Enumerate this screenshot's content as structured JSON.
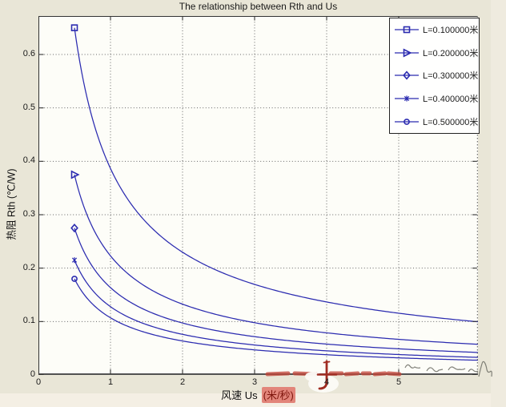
{
  "page": {
    "fig_bg": "#e9e6d7",
    "plot_bg": "#fdfdf8",
    "edge_bg": "#f4efe4"
  },
  "chart_data": {
    "type": "line",
    "title": "The relationship between Rth and Us",
    "xlabel": "风速 Us (米/秒)",
    "xlabel_main": "风速  Us",
    "xlabel_unit": "(米/秒)",
    "ylabel": "热阻  Rth (℃/W)",
    "xlim": [
      0,
      6.1
    ],
    "ylim": [
      0,
      0.672
    ],
    "xticks": [
      "0",
      "1",
      "2",
      "3",
      "4",
      "5"
    ],
    "xtick_values": [
      0,
      1,
      2,
      3,
      4,
      5
    ],
    "yticks": [
      "0",
      "0.1",
      "0.2",
      "0.3",
      "0.4",
      "0.5",
      "0.6"
    ],
    "ytick_values": [
      0,
      0.1,
      0.2,
      0.3,
      0.4,
      0.5,
      0.6
    ],
    "grid": true,
    "legend_position": "top-right",
    "model": "Rth(Us) = Rth(0.5) * (Us/0.5)^-0.75",
    "x_start": 0.5,
    "x_end": 6.1,
    "power": -0.75,
    "sample_x": [
      0.5,
      1,
      2,
      3,
      4,
      5,
      6
    ],
    "series": [
      {
        "name": "L=0.100000米",
        "L_m": 0.1,
        "marker": "square",
        "start_rth": 0.65,
        "sample_rth": [
          0.65,
          0.386,
          0.23,
          0.17,
          0.137,
          0.116,
          0.101
        ]
      },
      {
        "name": "L=0.200000米",
        "L_m": 0.2,
        "marker": "triangle-right",
        "start_rth": 0.375,
        "sample_rth": [
          0.375,
          0.223,
          0.133,
          0.098,
          0.079,
          0.067,
          0.058
        ]
      },
      {
        "name": "L=0.300000米",
        "L_m": 0.3,
        "marker": "diamond",
        "start_rth": 0.275,
        "sample_rth": [
          0.275,
          0.164,
          0.097,
          0.072,
          0.058,
          0.049,
          0.043
        ]
      },
      {
        "name": "L=0.400000米",
        "L_m": 0.4,
        "marker": "asterisk",
        "start_rth": 0.215,
        "sample_rth": [
          0.215,
          0.128,
          0.076,
          0.056,
          0.045,
          0.038,
          0.033
        ]
      },
      {
        "name": "L=0.500000米",
        "L_m": 0.5,
        "marker": "circle",
        "start_rth": 0.18,
        "sample_rth": [
          0.18,
          0.107,
          0.064,
          0.047,
          0.038,
          0.032,
          0.028
        ]
      }
    ],
    "colors": {
      "line": "#2b2bb0",
      "grid": "#666666",
      "axis": "#333333",
      "plot_bg": "#fdfdf8"
    }
  },
  "watermark": {
    "red": "#c2453a",
    "red_dark": "#a02c22",
    "highlight_bg": "#e2857a",
    "highlight_text": "#7e150c",
    "scribble_gray": "#6c6c64"
  }
}
